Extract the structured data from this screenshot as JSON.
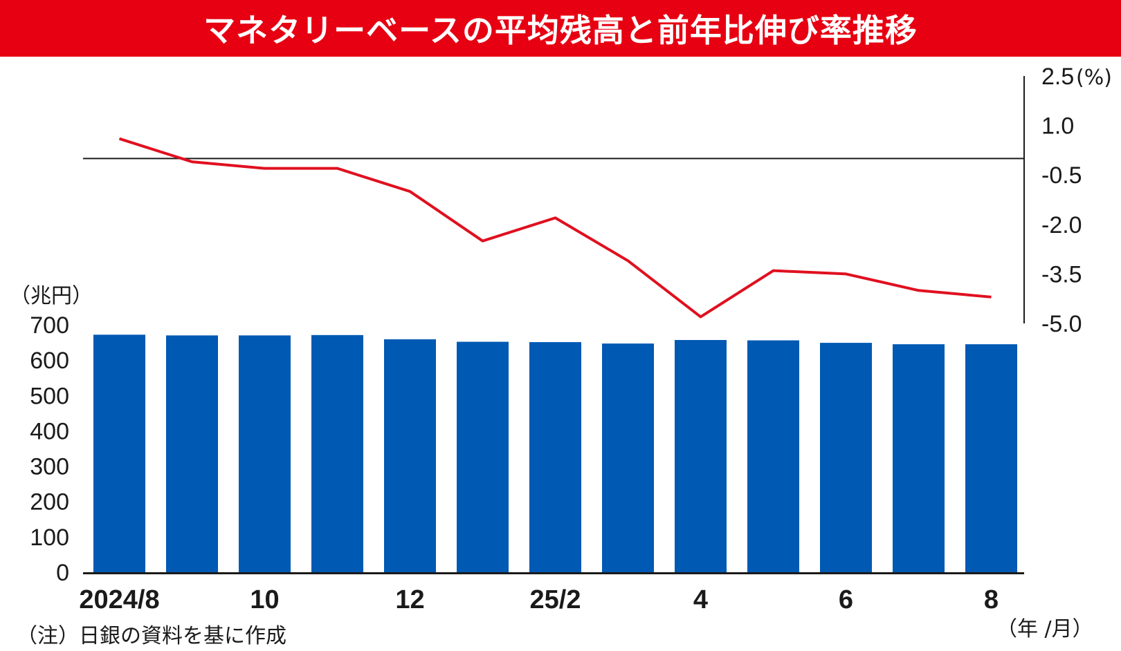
{
  "title": "マネタリーベースの平均残高と前年比伸び率推移",
  "note": "（注）日銀の資料を基に作成",
  "colors": {
    "title_bg": "#e60012",
    "bar": "#0059b3",
    "line": "#e0101f",
    "axis": "#1a1a1a"
  },
  "chart_data": {
    "type": "bar+line",
    "categories": [
      "2024/8",
      "2024/9",
      "2024/10",
      "2024/11",
      "2024/12",
      "2025/1",
      "2025/2",
      "2025/3",
      "2025/4",
      "2025/5",
      "2025/6",
      "2025/7",
      "2025/8"
    ],
    "x_tick_labels": [
      "2024/8",
      "",
      "10",
      "",
      "12",
      "",
      "25/2",
      "",
      "4",
      "",
      "6",
      "",
      "8"
    ],
    "x_unit_label": "（年 /月）",
    "left_axis": {
      "unit_label": "（兆円）",
      "ylim": [
        0,
        700
      ],
      "ticks": [
        "0",
        "100",
        "200",
        "300",
        "400",
        "500",
        "600",
        "700"
      ]
    },
    "right_axis": {
      "unit_label": "(%)",
      "ylim": [
        -5.0,
        2.5
      ],
      "ticks": [
        "-5.0",
        "-3.5",
        "-2.0",
        "-0.5",
        "1.0",
        "2.5"
      ]
    },
    "series": [
      {
        "type": "bar",
        "axis": "left",
        "values": [
          672,
          670,
          670,
          671,
          659,
          652,
          651,
          647,
          657,
          656,
          649,
          645,
          645
        ]
      },
      {
        "type": "line",
        "axis": "right",
        "reference_line": 0,
        "values": [
          0.6,
          -0.1,
          -0.3,
          -0.3,
          -1.0,
          -2.5,
          -1.8,
          -3.1,
          -4.8,
          -3.4,
          -3.5,
          -4.0,
          -4.2
        ]
      }
    ]
  }
}
